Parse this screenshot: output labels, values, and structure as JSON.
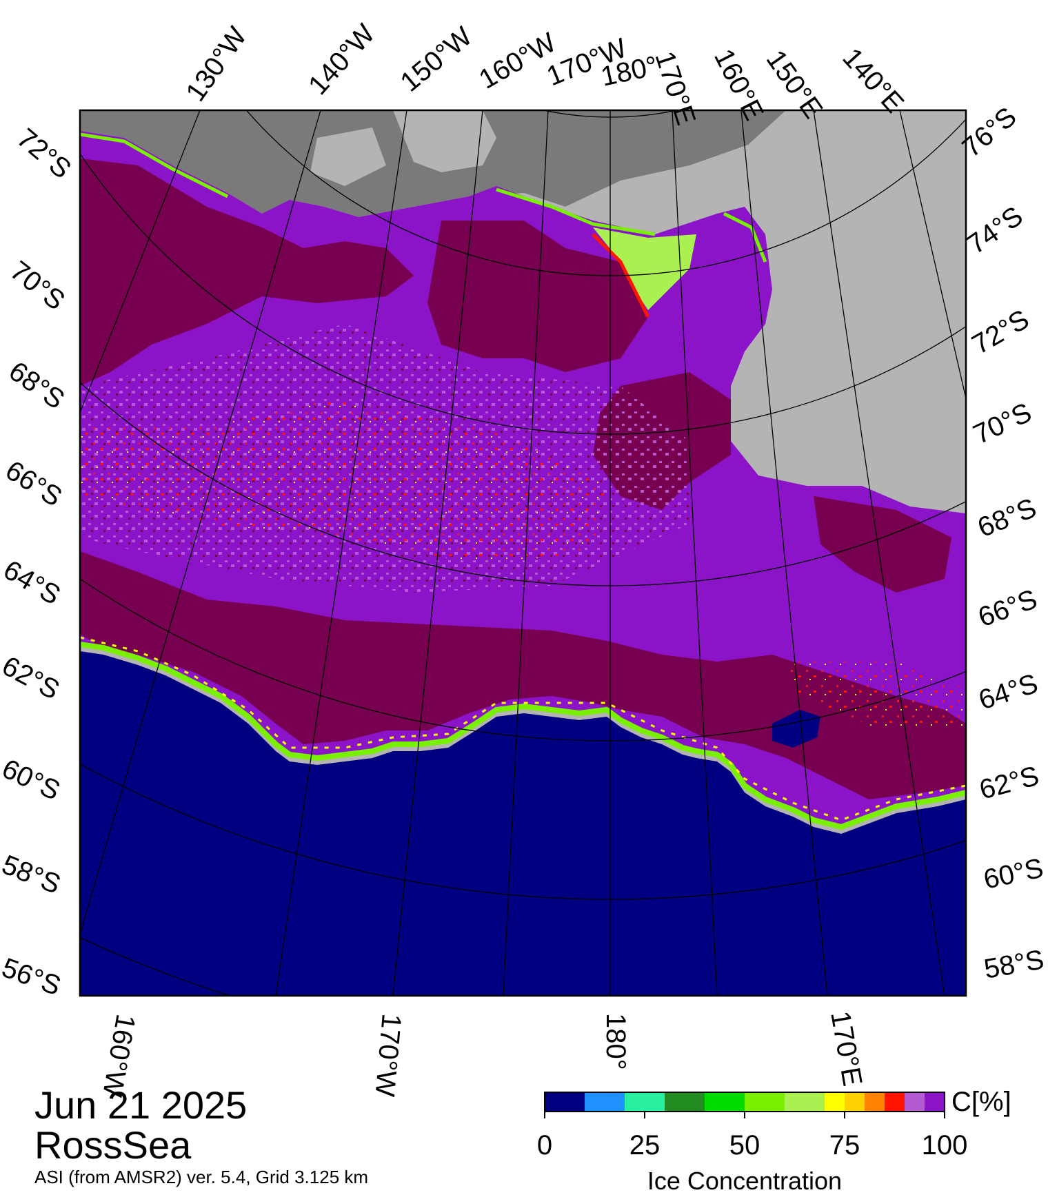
{
  "map": {
    "date": "Jun 21 2025",
    "region": "RossSea",
    "product": "ASI (from AMSR2) ver. 5.4,  Grid 3.125 km",
    "colors": {
      "open_water": "#000080",
      "land_ice": "#b4b4b4",
      "land_shadow": "#7a7a7a",
      "dark_ice": "#780050",
      "ice_high": "#8c14c8",
      "ice_mid": "#b45ad2",
      "ice_red": "#ff1400",
      "ice_yellow": "#ffff00",
      "ice_green": "#78f000"
    },
    "top_longitude_labels": [
      "130°W",
      "140°W",
      "150°W",
      "160°W",
      "170°W",
      "180°",
      "170°E",
      "160°E",
      "150°E",
      "140°E"
    ],
    "bottom_longitude_labels": [
      "160°W",
      "170°W",
      "180°",
      "170°E"
    ],
    "left_latitude_labels": [
      "72°S",
      "70°S",
      "68°S",
      "66°S",
      "64°S",
      "62°S",
      "60°S",
      "58°S",
      "56°S"
    ],
    "right_latitude_labels": [
      "76°S",
      "74°S",
      "72°S",
      "70°S",
      "68°S",
      "66°S",
      "64°S",
      "62°S",
      "60°S",
      "58°S"
    ]
  },
  "legend": {
    "title": "Ice Concentration",
    "unit": "C[%]",
    "tick_labels": [
      "0",
      "25",
      "50",
      "75",
      "100"
    ],
    "bins": [
      {
        "from": 0,
        "to": 10,
        "color": "#000080"
      },
      {
        "from": 10,
        "to": 20,
        "color": "#1e90ff"
      },
      {
        "from": 20,
        "to": 30,
        "color": "#28f0a0"
      },
      {
        "from": 30,
        "to": 40,
        "color": "#228b22"
      },
      {
        "from": 40,
        "to": 50,
        "color": "#00dc00"
      },
      {
        "from": 50,
        "to": 60,
        "color": "#78f000"
      },
      {
        "from": 60,
        "to": 70,
        "color": "#aaf050"
      },
      {
        "from": 70,
        "to": 75,
        "color": "#ffff00"
      },
      {
        "from": 75,
        "to": 80,
        "color": "#ffd200"
      },
      {
        "from": 80,
        "to": 85,
        "color": "#ff8200"
      },
      {
        "from": 85,
        "to": 90,
        "color": "#ff1400"
      },
      {
        "from": 90,
        "to": 95,
        "color": "#b45ad2"
      },
      {
        "from": 95,
        "to": 100,
        "color": "#8c14c8"
      }
    ]
  }
}
